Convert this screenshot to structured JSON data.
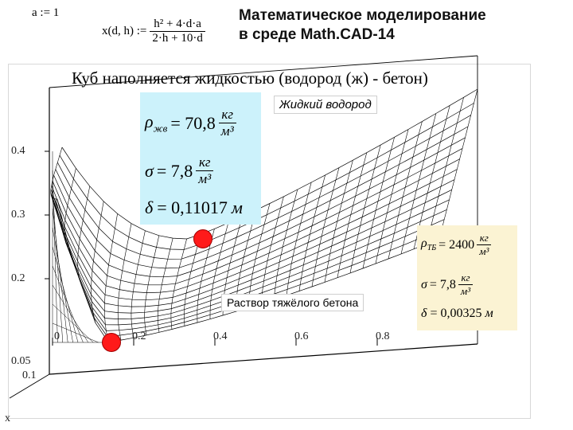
{
  "header": {
    "title_line1": "Математическое моделирование",
    "title_line2": "в среде Math.CAD-14",
    "assign": "a := 1",
    "func_lhs": "x(d, h) :=",
    "func_num": "h² + 4·d·a",
    "func_den": "2·h + 10·d"
  },
  "plot": {
    "caption": "Куб наполняется жидкостью (водород (ж) - бетон)",
    "label_top": "Жидкий водород",
    "label_bottom": "Раствор тяжёлого бетона",
    "z_label": "x",
    "colors": {
      "grid": "#000000",
      "dot": "#ff1a1a",
      "cyan": "#ccf2fb",
      "cream": "#fbf3d3"
    }
  },
  "chart_data": {
    "type": "surface",
    "title": "Куб наполняется жидкостью (водород (ж) - бетон)",
    "vertical_ticks": [
      "0.4",
      "0.3",
      "0.2",
      "0.05",
      "0.1"
    ],
    "horizontal_ticks": [
      "0",
      "0.2",
      "0.4",
      "0.6",
      "0.8"
    ],
    "z_axis_label": "x",
    "points": [
      {
        "name": "Жидкий водород",
        "value": 0.11017
      },
      {
        "name": "Раствор тяжёлого бетона",
        "value": 0.00325
      }
    ]
  },
  "hydrogen": {
    "rho_lhs": "ρ",
    "rho_sub": "жв",
    "rho_val": "= 70,8",
    "rho_unit_num": "кг",
    "rho_unit_den": "м³",
    "sigma_lhs": "σ",
    "sigma_val": "= 7,8",
    "sigma_unit_num": "кг",
    "sigma_unit_den": "м³",
    "delta_lhs": "δ",
    "delta_val": "= 0,11017",
    "delta_unit": "м"
  },
  "concrete": {
    "rho_lhs": "ρ",
    "rho_sub": "ТБ",
    "rho_val": "= 2400",
    "rho_unit_num": "кг",
    "rho_unit_den": "м³",
    "sigma_lhs": "σ",
    "sigma_val": "= 7,8",
    "sigma_unit_num": "кг",
    "sigma_unit_den": "м³",
    "delta_lhs": "δ",
    "delta_val": "= 0,00325",
    "delta_unit": "м"
  }
}
